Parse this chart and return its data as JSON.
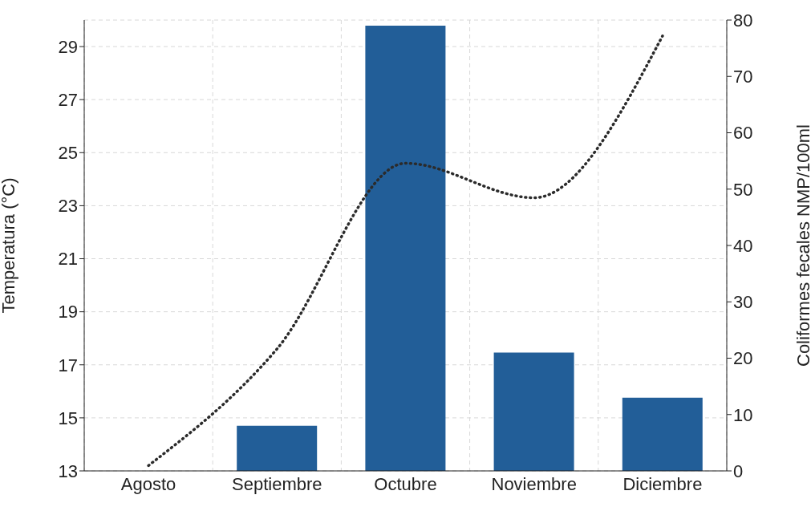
{
  "chart_data": {
    "type": "bar",
    "categories": [
      "Agosto",
      "Septiembre",
      "Octubre",
      "Noviembre",
      "Diciembre"
    ],
    "ylabel": "Temperatura (°C)",
    "y2label": "Coliformes fecales NMP/100ml",
    "ylim": [
      13,
      30
    ],
    "yticks": [
      13,
      15,
      17,
      19,
      21,
      23,
      25,
      27,
      29
    ],
    "y2lim": [
      0,
      80
    ],
    "y2ticks": [
      0,
      10,
      20,
      30,
      40,
      50,
      60,
      70,
      80
    ],
    "grid": true,
    "series": [
      {
        "axis": "y2",
        "color": "#225e98",
        "values": [
          0,
          8,
          79,
          21,
          13
        ]
      },
      {
        "type": "line",
        "axis": "y",
        "color": "#2b2b2b",
        "line_style": "dotted",
        "marker": "none",
        "values": [
          13.2,
          17.6,
          24.6,
          23.3,
          29.4
        ]
      }
    ]
  }
}
